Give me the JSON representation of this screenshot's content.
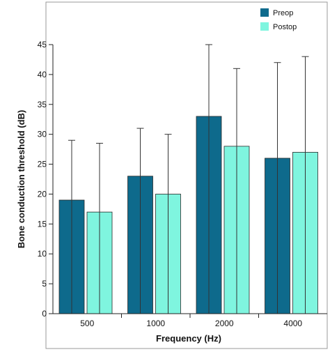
{
  "chart_data": {
    "type": "bar",
    "title": "",
    "xlabel": "Frequency (Hz)",
    "ylabel": "Bone conduction threshold (dB)",
    "categories": [
      "500",
      "1000",
      "2000",
      "4000"
    ],
    "ylim": [
      0,
      45
    ],
    "yticks": [
      0,
      5,
      10,
      15,
      20,
      25,
      30,
      35,
      40,
      45
    ],
    "grid": false,
    "legend_position": "top-right",
    "error_bars": "upper",
    "series": [
      {
        "name": "Preop",
        "color": "#0e6a8c",
        "values": [
          19,
          23,
          33,
          26
        ],
        "error": [
          10,
          8,
          12,
          16
        ]
      },
      {
        "name": "Postop",
        "color": "#7ff5df",
        "values": [
          17,
          20,
          28,
          27
        ],
        "error": [
          11.5,
          10,
          13,
          16
        ]
      }
    ]
  }
}
